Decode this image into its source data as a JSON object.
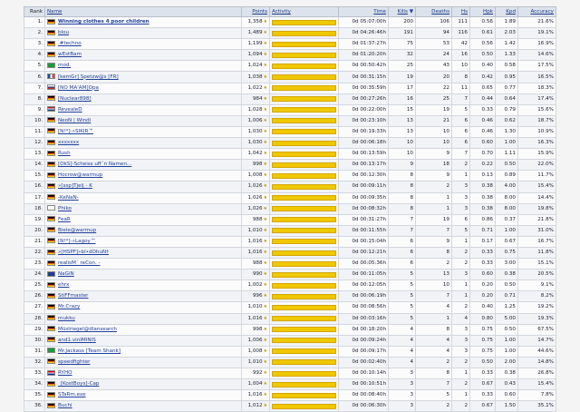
{
  "headers": {
    "rank": "Rank",
    "name": "Name",
    "points": "Points",
    "activity": "Activity",
    "time": "Time",
    "kills": "Kills",
    "kills_arrow": "▼",
    "deaths": "Deaths",
    "hs": "Hs",
    "hpk": "Hpk",
    "kpd": "Kpd",
    "accuracy": "Accuracy"
  },
  "star_glyph": "★",
  "rows": [
    {
      "rank": "1.",
      "flag": "de",
      "name": "Winning clothes 4 poor children",
      "bold": true,
      "points": "1,358",
      "star": true,
      "activity": 1,
      "time": "0d 05:07:00h",
      "kills": "200",
      "deaths": "106",
      "hs": "111",
      "hpk": "0.56",
      "kpd": "1.89",
      "accuracy": "21.6%"
    },
    {
      "rank": "2.",
      "flag": "de",
      "name": "blou",
      "points": "1,489",
      "star": true,
      "activity": 1,
      "time": "0d 04:26:46h",
      "kills": "191",
      "deaths": "94",
      "hs": "116",
      "hpk": "0.61",
      "kpd": "2.03",
      "accuracy": "19.1%"
    },
    {
      "rank": "3.",
      "flag": "de",
      "name": ".#techno",
      "points": "1,199",
      "star": true,
      "activity": 1,
      "time": "0d 01:37:27h",
      "kills": "75",
      "deaths": "53",
      "hs": "42",
      "hpk": "0.56",
      "kpd": "1.42",
      "accuracy": "16.9%"
    },
    {
      "rank": "4.",
      "flag": "de",
      "name": "wEstBam",
      "points": "1,094",
      "star": true,
      "activity": 1,
      "time": "0d 01:20:20h",
      "kills": "32",
      "deaths": "24",
      "hs": "16",
      "hpk": "0.50",
      "kpd": "1.33",
      "accuracy": "14.6%"
    },
    {
      "rank": "5.",
      "flag": "br",
      "name": "mod.",
      "points": "1,024",
      "star": true,
      "activity": 1,
      "time": "0d 00:50:42h",
      "kills": "25",
      "deaths": "43",
      "hs": "10",
      "hpk": "0.40",
      "kpd": "0.58",
      "accuracy": "17.5%"
    },
    {
      "rank": "6.",
      "flag": "fr",
      "name": "[kemGr] Spetzw@s [FR]",
      "points": "1,038",
      "star": true,
      "activity": 1,
      "time": "0d 00:31:15h",
      "kills": "19",
      "deaths": "20",
      "hs": "8",
      "hpk": "0.42",
      "kpd": "0.95",
      "accuracy": "16.5%"
    },
    {
      "rank": "7.",
      "flag": "ru",
      "name": "[NO MA'AM]Opa",
      "points": "1,022",
      "star": true,
      "activity": 1,
      "time": "0d 00:35:59h",
      "kills": "17",
      "deaths": "22",
      "hs": "11",
      "hpk": "0.65",
      "kpd": "0.77",
      "accuracy": "18.3%"
    },
    {
      "rank": "8.",
      "flag": "de",
      "name": "[Nuclear898]",
      "points": "984",
      "star": true,
      "activity": 1,
      "time": "0d 00:27:26h",
      "kills": "16",
      "deaths": "25",
      "hs": "7",
      "hpk": "0.44",
      "kpd": "0.64",
      "accuracy": "17.4%"
    },
    {
      "rank": "9.",
      "flag": "nl",
      "name": "RevealeD",
      "points": "1,028",
      "star": true,
      "activity": 1,
      "time": "0d 00:22:00h",
      "kills": "15",
      "deaths": "19",
      "hs": "5",
      "hpk": "0.33",
      "kpd": "0.79",
      "accuracy": "15.6%"
    },
    {
      "rank": "10.",
      "flag": "de",
      "name": "NeoN | Windi",
      "points": "1,006",
      "star": true,
      "activity": 1,
      "time": "0d 00:23:10h",
      "kills": "13",
      "deaths": "21",
      "hs": "6",
      "hpk": "0.46",
      "kpd": "0.62",
      "accuracy": "18.7%"
    },
    {
      "rank": "11.",
      "flag": "de",
      "name": "[N!*]-»SIKIR™",
      "points": "1,030",
      "star": true,
      "activity": 1,
      "time": "0d 00:19:33h",
      "kills": "13",
      "deaths": "10",
      "hs": "6",
      "hpk": "0.46",
      "kpd": "1.30",
      "accuracy": "10.9%"
    },
    {
      "rank": "12.",
      "flag": "de",
      "name": "xxxxxxx",
      "points": "1,030",
      "star": true,
      "activity": 1,
      "time": "0d 00:06:18h",
      "kills": "10",
      "deaths": "10",
      "hs": "6",
      "hpk": "0.60",
      "kpd": "1.00",
      "accuracy": "16.3%"
    },
    {
      "rank": "13.",
      "flag": "de",
      "name": "Rush",
      "points": "1,042",
      "star": true,
      "activity": 1,
      "time": "0d 00:13:59h",
      "kills": "10",
      "deaths": "9",
      "hs": "7",
      "hpk": "0.70",
      "kpd": "1.11",
      "accuracy": "15.9%"
    },
    {
      "rank": "14.",
      "flag": "de",
      "name": "[OkS]-Scheiss uff´n Namen...",
      "points": "998",
      "star": true,
      "activity": 1,
      "time": "0d 00:13:17h",
      "kills": "9",
      "deaths": "18",
      "hs": "2",
      "hpk": "0.22",
      "kpd": "0.50",
      "accuracy": "22.0%"
    },
    {
      "rank": "15.",
      "flag": "de",
      "name": "Hocrow@warmup",
      "points": "1,008",
      "star": true,
      "activity": 1,
      "time": "0d 00:12:30h",
      "kills": "8",
      "deaths": "9",
      "hs": "1",
      "hpk": "0.13",
      "kpd": "0.89",
      "accuracy": "11.7%"
    },
    {
      "rank": "16.",
      "flag": "de",
      "name": "»[ssp]Tjelj - K",
      "points": "1,026",
      "star": true,
      "activity": 1,
      "time": "0d 00:09:11h",
      "kills": "8",
      "deaths": "2",
      "hs": "3",
      "hpk": "0.38",
      "kpd": "4.00",
      "accuracy": "15.4%"
    },
    {
      "rank": "17.",
      "flag": "de",
      "name": "-KeNaN-",
      "points": "1,026",
      "star": true,
      "activity": 1,
      "time": "0d 00:09:35h",
      "kills": "8",
      "deaths": "1",
      "hs": "3",
      "hpk": "0.38",
      "kpd": "8.00",
      "accuracy": "14.4%"
    },
    {
      "rank": "18.",
      "flag": "il",
      "name": "Phiko",
      "points": "1,026",
      "star": true,
      "activity": 1,
      "time": "0d 00:08:32h",
      "kills": "8",
      "deaths": "1",
      "hs": "3",
      "hpk": "0.38",
      "kpd": "8.00",
      "accuracy": "19.8%"
    },
    {
      "rank": "19.",
      "flag": "de",
      "name": "FeaR",
      "points": "988",
      "star": true,
      "activity": 1,
      "time": "0d 00:31:27h",
      "kills": "7",
      "deaths": "19",
      "hs": "6",
      "hpk": "0.86",
      "kpd": "0.37",
      "accuracy": "21.8%"
    },
    {
      "rank": "20.",
      "flag": "de",
      "name": "Biele@warmup",
      "points": "1,010",
      "star": true,
      "activity": 1,
      "time": "0d 00:11:55h",
      "kills": "7",
      "deaths": "7",
      "hs": "5",
      "hpk": "0.71",
      "kpd": "1.00",
      "accuracy": "31.0%"
    },
    {
      "rank": "21.",
      "flag": "de",
      "name": "[N!*]-»Lagoy™",
      "points": "1,016",
      "star": true,
      "activity": 1,
      "time": "0d 00:15:04h",
      "kills": "6",
      "deaths": "9",
      "hs": "1",
      "hpk": "0.17",
      "kpd": "0.67",
      "accuracy": "16.7%"
    },
    {
      "rank": "22.",
      "flag": "de",
      "name": "»[HSPF]»bl•dOhuN†",
      "points": "1,016",
      "star": true,
      "activity": 1,
      "time": "0d 00:12:21h",
      "kills": "6",
      "deaths": "8",
      "hs": "2",
      "hpk": "0.33",
      "kpd": "0.75",
      "accuracy": "11.8%"
    },
    {
      "rank": "23.",
      "flag": "de",
      "name": "realisM´ reCon. -",
      "points": "988",
      "star": true,
      "activity": 1,
      "time": "0d 00:05:36h",
      "kills": "6",
      "deaths": "2",
      "hs": "2",
      "hpk": "0.33",
      "kpd": "3.00",
      "accuracy": "15.1%"
    },
    {
      "rank": "24.",
      "flag": "uk",
      "name": "NaGiN",
      "points": "990",
      "star": true,
      "activity": 1,
      "time": "0d 00:11:05h",
      "kills": "5",
      "deaths": "13",
      "hs": "3",
      "hpk": "0.60",
      "kpd": "0.38",
      "accuracy": "20.5%"
    },
    {
      "rank": "25.",
      "flag": "de",
      "name": "ehrx",
      "points": "1,002",
      "star": true,
      "activity": 1,
      "time": "0d 00:12:05h",
      "kills": "5",
      "deaths": "10",
      "hs": "1",
      "hpk": "0.20",
      "kpd": "0.50",
      "accuracy": "9.1%"
    },
    {
      "rank": "26.",
      "flag": "de",
      "name": "StiFFmaster",
      "points": "996",
      "star": true,
      "activity": 1,
      "time": "0d 00:06:19h",
      "kills": "5",
      "deaths": "7",
      "hs": "1",
      "hpk": "0.20",
      "kpd": "0.71",
      "accuracy": "8.2%"
    },
    {
      "rank": "27.",
      "flag": "de",
      "name": "Mr.Crazy",
      "points": "1,010",
      "star": true,
      "activity": 1,
      "time": "0d 00:08:56h",
      "kills": "5",
      "deaths": "4",
      "hs": "2",
      "hpk": "0.40",
      "kpd": "1.25",
      "accuracy": "19.2%"
    },
    {
      "rank": "28.",
      "flag": "de",
      "name": "mukku",
      "points": "1,016",
      "star": true,
      "activity": 1,
      "time": "0d 00:03:16h",
      "kills": "5",
      "deaths": "1",
      "hs": "4",
      "hpk": "0.80",
      "kpd": "5.00",
      "accuracy": "19.3%"
    },
    {
      "rank": "29.",
      "flag": "de",
      "name": "Müslriegel@dlansearch",
      "points": "998",
      "star": true,
      "activity": 1,
      "time": "0d 00:18:20h",
      "kills": "4",
      "deaths": "8",
      "hs": "3",
      "hpk": "0.75",
      "kpd": "0.50",
      "accuracy": "67.5%"
    },
    {
      "rank": "30.",
      "flag": "de",
      "name": "and1.vinIMINIS",
      "points": "1,006",
      "star": true,
      "activity": 1,
      "time": "0d 00:09:24h",
      "kills": "4",
      "deaths": "4",
      "hs": "3",
      "hpk": "0.75",
      "kpd": "1.00",
      "accuracy": "14.7%"
    },
    {
      "rank": "31.",
      "flag": "br",
      "name": "Mr.Jackass [Team Shank]",
      "points": "1,008",
      "star": true,
      "activity": 1,
      "time": "0d 00:09:17h",
      "kills": "4",
      "deaths": "4",
      "hs": "3",
      "hpk": "0.75",
      "kpd": "1.00",
      "accuracy": "44.6%"
    },
    {
      "rank": "32.",
      "flag": "de",
      "name": "speedfighter",
      "points": "1,010",
      "star": true,
      "activity": 1,
      "time": "0d 00:02:40h",
      "kills": "4",
      "deaths": "2",
      "hs": "2",
      "hpk": "0.50",
      "kpd": "2.00",
      "accuracy": "14.8%"
    },
    {
      "rank": "33.",
      "flag": "hr",
      "name": "RYHO",
      "points": "992",
      "star": true,
      "activity": 1,
      "time": "0d 00:10:14h",
      "kills": "3",
      "deaths": "8",
      "hs": "1",
      "hpk": "0.33",
      "kpd": "0.38",
      "accuracy": "26.8%"
    },
    {
      "rank": "34.",
      "flag": "de",
      "name": "_[KostBoys]-Cap",
      "points": "1,004",
      "star": true,
      "activity": 1,
      "time": "0d 00:10:51h",
      "kills": "3",
      "deaths": "7",
      "hs": "2",
      "hpk": "0.67",
      "kpd": "0.43",
      "accuracy": "15.4%"
    },
    {
      "rank": "35.",
      "flag": "de",
      "name": "STaRm.exe",
      "points": "1,016",
      "star": true,
      "activity": 1,
      "time": "0d 00:08:40h",
      "kills": "3",
      "deaths": "5",
      "hs": "1",
      "hpk": "0.33",
      "kpd": "0.60",
      "accuracy": "7.8%"
    },
    {
      "rank": "36.",
      "flag": "de",
      "name": "Buchi",
      "points": "1,012",
      "star": true,
      "activity": 1,
      "time": "0d 00:06:30h",
      "kills": "3",
      "deaths": "2",
      "hs": "2",
      "hpk": "0.67",
      "kpd": "1.50",
      "accuracy": "35.1%"
    }
  ]
}
